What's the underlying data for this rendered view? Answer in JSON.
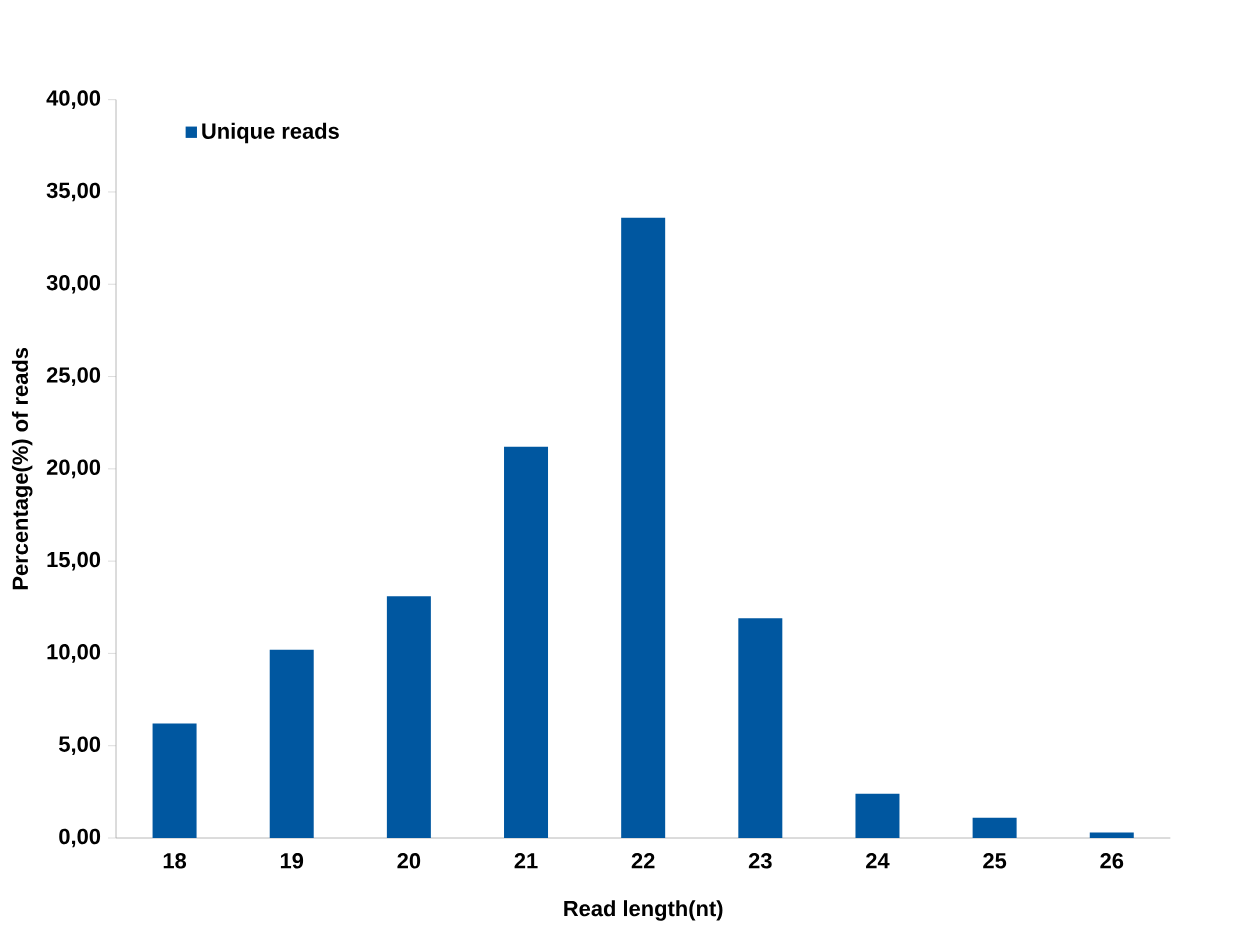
{
  "chart_data": {
    "type": "bar",
    "xlabel": "Read length(nt)",
    "ylabel": "Percentage(%) of reads",
    "categories": [
      "18",
      "19",
      "20",
      "21",
      "22",
      "23",
      "24",
      "25",
      "26"
    ],
    "series": [
      {
        "name": "Unique reads",
        "color": "#0057a0",
        "values": [
          6.2,
          10.2,
          13.1,
          21.2,
          33.6,
          11.9,
          2.4,
          1.1,
          0.3
        ]
      }
    ],
    "ylim": [
      0,
      40
    ],
    "yticks": [
      {
        "value": 0,
        "label": "0,00"
      },
      {
        "value": 5,
        "label": "5,00"
      },
      {
        "value": 10,
        "label": "10,00"
      },
      {
        "value": 15,
        "label": "15,00"
      },
      {
        "value": 20,
        "label": "20,00"
      },
      {
        "value": 25,
        "label": "25,00"
      },
      {
        "value": 30,
        "label": "30,00"
      },
      {
        "value": 35,
        "label": "35,00"
      },
      {
        "value": 40,
        "label": "40,00"
      }
    ],
    "legend": "top left",
    "grid": false
  }
}
